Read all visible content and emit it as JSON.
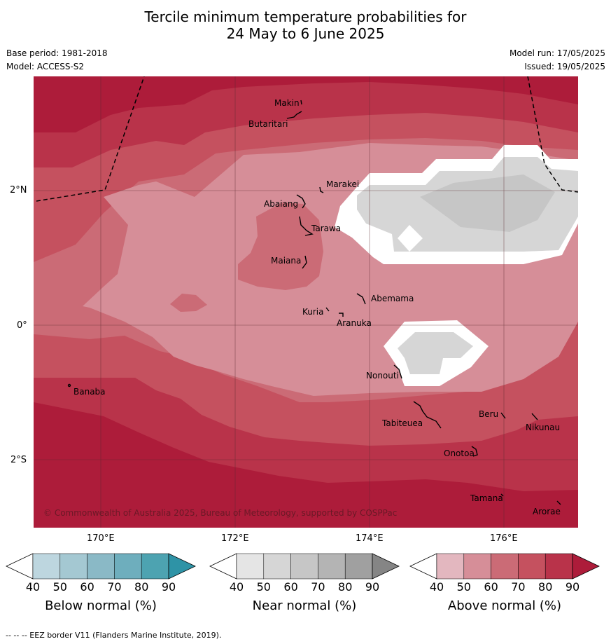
{
  "title": {
    "line1": "Tercile minimum temperature probabilities for",
    "line2": "24 May to 6 June 2025"
  },
  "meta": {
    "base_period": "Base period: 1981-2018",
    "model": "Model: ACCESS-S2",
    "model_run": "Model run: 17/05/2025",
    "issued": "Issued: 19/05/2025"
  },
  "axes": {
    "lat_labels": [
      "2°N",
      "0°",
      "2°S"
    ],
    "lon_labels": [
      "170°E",
      "172°E",
      "174°E",
      "176°E"
    ]
  },
  "places": [
    {
      "name": "Makin"
    },
    {
      "name": "Butaritari"
    },
    {
      "name": "Marakei"
    },
    {
      "name": "Abaiang"
    },
    {
      "name": "Tarawa"
    },
    {
      "name": "Maiana"
    },
    {
      "name": "Abemama"
    },
    {
      "name": "Kuria"
    },
    {
      "name": "Aranuka"
    },
    {
      "name": "Nonouti"
    },
    {
      "name": "Banaba"
    },
    {
      "name": "Beru"
    },
    {
      "name": "Tabiteuea"
    },
    {
      "name": "Nikunau"
    },
    {
      "name": "Onotoa"
    },
    {
      "name": "Tamana"
    },
    {
      "name": "Arorae"
    }
  ],
  "copyright": "© Commonwealth of Australia 2025, Bureau of Meteorology, supported by COSPPac",
  "colorbars": [
    {
      "label": "Below normal (%)",
      "ticks": [
        "40",
        "50",
        "60",
        "70",
        "80",
        "90"
      ],
      "colors": [
        "#bdd6df",
        "#a4c8d2",
        "#8ab9c6",
        "#6eaebd",
        "#4da3b1",
        "#2e93a6"
      ]
    },
    {
      "label": "Near normal (%)",
      "ticks": [
        "40",
        "50",
        "60",
        "70",
        "80",
        "90"
      ],
      "colors": [
        "#e5e5e5",
        "#d6d6d6",
        "#c6c6c6",
        "#b4b4b4",
        "#a0a0a0",
        "#858585"
      ]
    },
    {
      "label": "Above normal (%)",
      "ticks": [
        "40",
        "50",
        "60",
        "70",
        "80",
        "90"
      ],
      "colors": [
        "#e3b7bf",
        "#d68e98",
        "#cb6b76",
        "#c5515f",
        "#b9334a",
        "#ad1c3a"
      ]
    }
  ],
  "footer": "--  --  -- EEZ border V11 (Flanders Marine Institute, 2019)."
}
